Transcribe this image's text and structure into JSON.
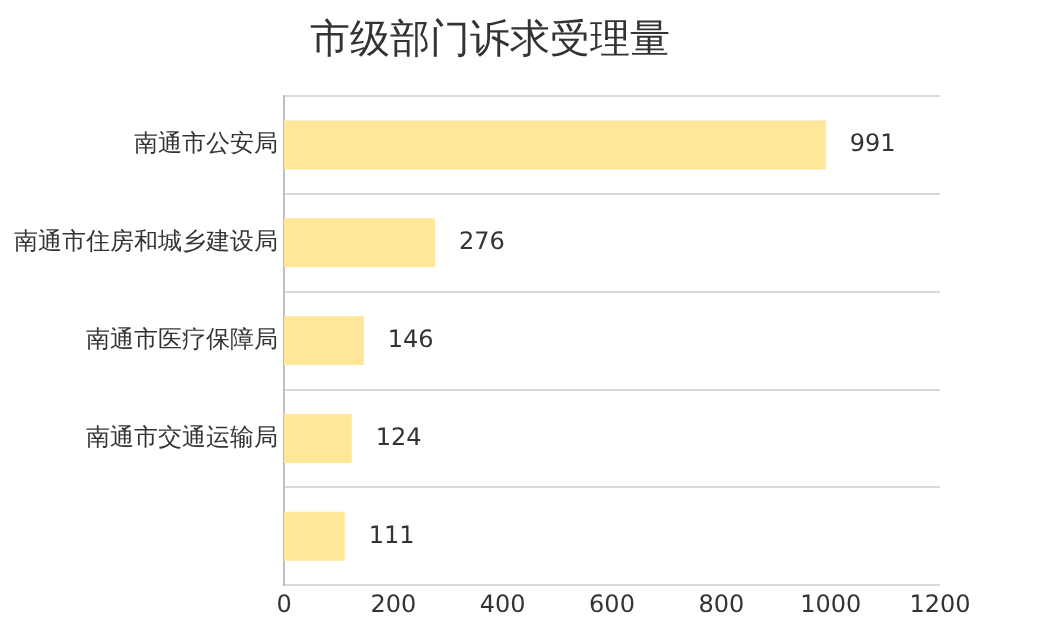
{
  "chart_data": {
    "type": "bar",
    "orientation": "horizontal",
    "title": "市级部门诉求受理量",
    "categories": [
      "南通市公安局",
      "南通市住房和城乡建设局",
      "南通市医疗保障局",
      "南通市交通运输局",
      null
    ],
    "values": [
      991,
      276,
      146,
      124,
      111
    ],
    "color": "#ffe699",
    "xlim": [
      0,
      1200
    ],
    "xticks": [
      0,
      200,
      400,
      600,
      800,
      1000,
      1200
    ],
    "grid": "y",
    "data_labels": true
  }
}
